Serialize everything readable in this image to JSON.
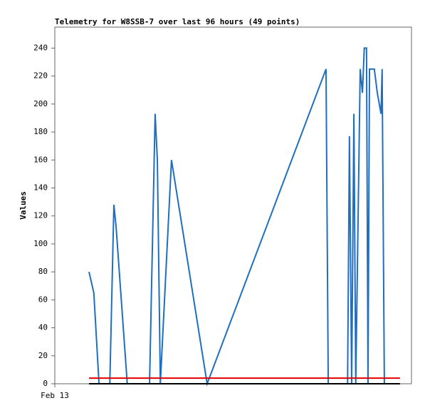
{
  "chart_data": {
    "type": "line",
    "title": "Telemetry for W8SSB-7 over last 96 hours (49 points)",
    "y_label": "Values",
    "xlim": [
      0,
      96
    ],
    "xticks": [
      {
        "value": 0,
        "label": "Feb 13"
      }
    ],
    "ylim": [
      0,
      255
    ],
    "yticks": [
      0,
      20,
      40,
      60,
      80,
      100,
      120,
      140,
      160,
      180,
      200,
      220,
      240
    ],
    "series": [
      {
        "color": "#1f6ec0",
        "x": [
          9.2,
          10.5,
          11.9,
          14.8,
          15.9,
          16.5,
          19.5,
          25.5,
          27.0,
          27.6,
          28.4,
          31.4,
          41.0,
          73.0,
          73.6,
          78.8,
          79.3,
          79.9,
          80.5,
          81.0,
          82.2,
          82.8,
          83.3,
          83.9,
          84.3,
          84.7,
          86.0,
          86.8,
          87.8,
          88.1,
          88.7
        ],
        "values": [
          80,
          65,
          0,
          0,
          128,
          112,
          0,
          0,
          193,
          160,
          0,
          160,
          0,
          225,
          0,
          0,
          177,
          0,
          193,
          0,
          225,
          208,
          240,
          240,
          0,
          225,
          225,
          208,
          193,
          225,
          0
        ]
      },
      {
        "color": "#e00000",
        "x": [
          9.2,
          92.9
        ],
        "values": [
          4,
          4
        ]
      },
      {
        "color": "#000000",
        "x": [
          9.2,
          92.9
        ],
        "values": [
          0,
          0
        ]
      }
    ]
  }
}
